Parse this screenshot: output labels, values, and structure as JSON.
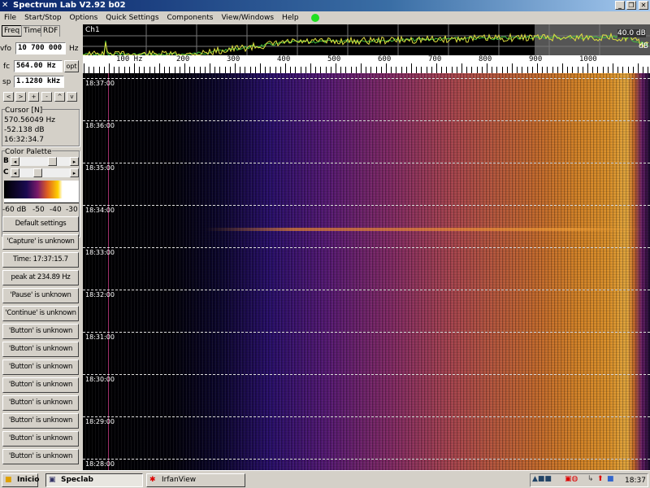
{
  "window": {
    "title": "Spectrum Lab V2.92 b02",
    "min": "_",
    "restore": "❐",
    "close": "✕"
  },
  "menu": [
    "File",
    "Start/Stop",
    "Options",
    "Quick Settings",
    "Components",
    "View/Windows",
    "Help"
  ],
  "tabs": [
    "Freq",
    "Time",
    "RDF"
  ],
  "freq": {
    "vfo_label": "vfo",
    "vfo": "10 700 000",
    "vfo_unit": "Hz",
    "fc_label": "fc",
    "fc": "564.00 Hz",
    "opt": "opt",
    "sp_label": "sp",
    "sp": "1.1280 kHz"
  },
  "nav_buttons": [
    "<",
    ">",
    "+",
    "-",
    "^",
    "v"
  ],
  "cursor": {
    "title": "Cursor [N]",
    "freq": "570.56049 Hz",
    "level": "-52.138 dB",
    "time": "16:32:34.7"
  },
  "palette": {
    "title": "Color Palette",
    "b": "B",
    "c": "C",
    "ticks": [
      "-60 dB",
      "-50",
      "-40",
      "-30"
    ],
    "b_value": 0.55,
    "c_value": 0.45
  },
  "buttons": [
    "Default settings",
    "'Capture' is unknown",
    "Time:  17:37:15.7",
    "peak at 234.89 Hz",
    "'Pause' is unknown",
    "'Continue' is unknown",
    "'Button' is unknown",
    "'Button' is unknown",
    "'Button' is unknown",
    "'Button' is unknown",
    "'Button' is unknown",
    "'Button' is unknown",
    "'Button' is unknown",
    "'Button' is unknown"
  ],
  "spectrum": {
    "channel": "Ch1",
    "db_label": "40.0 dB",
    "db_label2": "dB"
  },
  "ruler": {
    "labels": [
      "100 Hz",
      "200",
      "300",
      "400",
      "500",
      "600",
      "700",
      "800",
      "900",
      "1000"
    ]
  },
  "waterfall": {
    "times": [
      "18:37:00",
      "18:36:00",
      "18:35:00",
      "18:34:00",
      "18:33:00",
      "18:32:00",
      "18:31:00",
      "18:30:00",
      "18:29:00",
      "18:28:00"
    ]
  },
  "taskbar": {
    "start": "Inicio",
    "tasks": [
      "Speclab",
      "IrfanView"
    ],
    "clock": "18:37"
  },
  "colors": {
    "title_bar": "#0a246a",
    "spectrum_green": "#40c040",
    "spectrum_yellow": "#e0e040",
    "status_led": "#20e020"
  }
}
